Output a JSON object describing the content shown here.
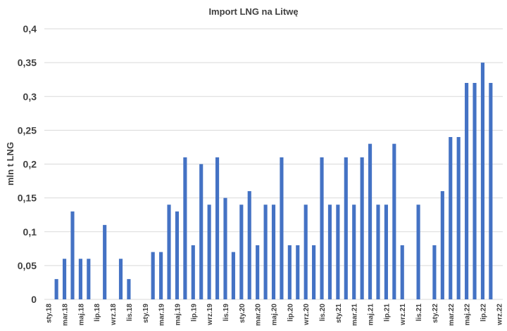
{
  "chart_data": {
    "type": "bar",
    "title": "Import LNG na Litwę",
    "xlabel": "",
    "ylabel": "mln t LNG",
    "ylim": [
      0,
      0.4
    ],
    "yticks": [
      "0",
      "0,05",
      "0,1",
      "0,15",
      "0,2",
      "0,25",
      "0,3",
      "0,35",
      "0,4"
    ],
    "grid": true,
    "bar_color": "#4472C4",
    "categories": [
      "sty.18",
      "lut.18",
      "mar.18",
      "kwi.18",
      "maj.18",
      "cze.18",
      "lip.18",
      "sie.18",
      "wrz.18",
      "paź.18",
      "lis.18",
      "gru.18",
      "sty.19",
      "lut.19",
      "mar.19",
      "kwi.19",
      "maj.19",
      "cze.19",
      "lip.19",
      "sie.19",
      "wrz.19",
      "paź.19",
      "lis.19",
      "gru.19",
      "sty.20",
      "lut.20",
      "mar.20",
      "kwi.20",
      "maj.20",
      "cze.20",
      "lip.20",
      "sie.20",
      "wrz.20",
      "paź.20",
      "lis.20",
      "gru.20",
      "sty.21",
      "lut.21",
      "mar.21",
      "kwi.21",
      "maj.21",
      "cze.21",
      "lip.21",
      "sie.21",
      "wrz.21",
      "paź.21",
      "lis.21",
      "gru.21",
      "sty.22",
      "lut.22",
      "mar.22",
      "kwi.22",
      "maj.22",
      "cze.22",
      "lip.22",
      "sie.22",
      "wrz.22"
    ],
    "shown_tick_labels": [
      "sty.18",
      "mar.18",
      "maj.18",
      "lip.18",
      "wrz.18",
      "lis.18",
      "sty.19",
      "mar.19",
      "maj.19",
      "lip.19",
      "wrz.19",
      "lis.19",
      "sty.20",
      "mar.20",
      "maj.20",
      "lip.20",
      "wrz.20",
      "lis.20",
      "sty.21",
      "mar.21",
      "maj.21",
      "lip.21",
      "wrz.21",
      "lis.21",
      "sty.22",
      "mar.22",
      "maj.22",
      "lip.22",
      "wrz.22"
    ],
    "values": [
      0,
      0.03,
      0.06,
      0.13,
      0.06,
      0.06,
      0,
      0.11,
      0,
      0.06,
      0.03,
      0,
      0,
      0.07,
      0.07,
      0.14,
      0.13,
      0.21,
      0.08,
      0.2,
      0.14,
      0.21,
      0.15,
      0.07,
      0.14,
      0.16,
      0.08,
      0.14,
      0.14,
      0.21,
      0.08,
      0.08,
      0.14,
      0.08,
      0.21,
      0.14,
      0.14,
      0.21,
      0.14,
      0.21,
      0.23,
      0.14,
      0.14,
      0.23,
      0.08,
      0,
      0.14,
      0,
      0.08,
      0.16,
      0.24,
      0.24,
      0.32,
      0.32,
      0.35,
      0.32,
      0
    ]
  }
}
